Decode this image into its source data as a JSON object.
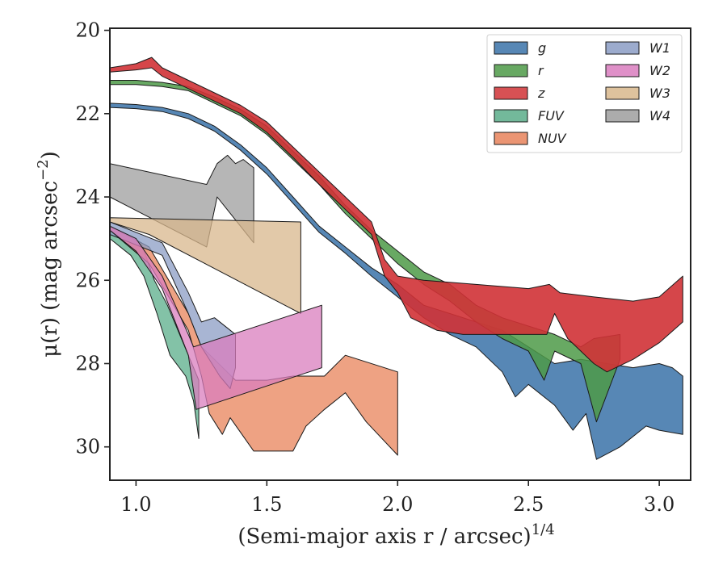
{
  "chart_data": {
    "type": "area",
    "title": "",
    "xlabel": "(Semi-major axis r / arcsec)",
    "xlabel_exponent": "1/4",
    "ylabel_prefix": "μ(r) (mag arcsec",
    "ylabel_exponent": "−2",
    "ylabel_suffix": ")",
    "xlim": [
      0.9,
      3.12
    ],
    "ylim": [
      30.8,
      19.95
    ],
    "y_inverted": true,
    "grid": false,
    "legend_position": "top-right",
    "x_ticks": [
      1.0,
      1.5,
      2.0,
      2.5,
      3.0
    ],
    "x_tick_labels": [
      "1.0",
      "1.5",
      "2.0",
      "2.5",
      "3.0"
    ],
    "y_ticks": [
      20,
      22,
      24,
      26,
      28,
      30
    ],
    "y_tick_labels": [
      "20",
      "22",
      "24",
      "26",
      "28",
      "30"
    ],
    "series": [
      {
        "name": "W4",
        "color": "#9e9e9e",
        "opacity": 0.75,
        "upper": [
          [
            0.9,
            23.2
          ],
          [
            1.27,
            23.7
          ],
          [
            1.31,
            23.2
          ],
          [
            1.35,
            23.0
          ],
          [
            1.38,
            23.2
          ],
          [
            1.41,
            23.1
          ],
          [
            1.45,
            23.3
          ]
        ],
        "lower": [
          [
            0.9,
            24.0
          ],
          [
            1.27,
            25.2
          ],
          [
            1.31,
            24.0
          ],
          [
            1.45,
            25.1
          ]
        ]
      },
      {
        "name": "W3",
        "color": "#d8b78c",
        "opacity": 0.75,
        "upper": [
          [
            0.9,
            24.5
          ],
          [
            1.63,
            24.6
          ]
        ],
        "lower": [
          [
            0.9,
            24.6
          ],
          [
            1.05,
            24.9
          ],
          [
            1.63,
            26.8
          ]
        ]
      },
      {
        "name": "FUV",
        "color": "#5aad8a",
        "opacity": 0.75,
        "upper": [
          [
            0.9,
            24.7
          ],
          [
            1.02,
            25.1
          ],
          [
            1.07,
            26.0
          ],
          [
            1.12,
            26.6
          ],
          [
            1.18,
            27.5
          ],
          [
            1.24,
            28.4
          ]
        ],
        "lower": [
          [
            0.9,
            25.0
          ],
          [
            0.98,
            25.4
          ],
          [
            1.03,
            25.9
          ],
          [
            1.08,
            26.8
          ],
          [
            1.13,
            27.8
          ],
          [
            1.19,
            28.3
          ],
          [
            1.22,
            28.9
          ],
          [
            1.24,
            29.8
          ]
        ]
      },
      {
        "name": "NUV",
        "color": "#e8835a",
        "opacity": 0.75,
        "upper": [
          [
            0.9,
            24.7
          ],
          [
            1.05,
            25.2
          ],
          [
            1.2,
            26.8
          ],
          [
            1.25,
            27.6
          ],
          [
            1.3,
            27.9
          ],
          [
            1.38,
            28.4
          ],
          [
            1.5,
            28.4
          ],
          [
            1.6,
            28.3
          ],
          [
            1.72,
            28.3
          ],
          [
            1.8,
            27.8
          ],
          [
            2.0,
            28.2
          ]
        ],
        "lower": [
          [
            0.9,
            24.8
          ],
          [
            1.05,
            25.6
          ],
          [
            1.2,
            27.2
          ],
          [
            1.25,
            28.3
          ],
          [
            1.28,
            29.2
          ],
          [
            1.33,
            29.7
          ],
          [
            1.36,
            29.3
          ],
          [
            1.45,
            30.1
          ],
          [
            1.6,
            30.1
          ],
          [
            1.65,
            29.5
          ],
          [
            1.72,
            29.1
          ],
          [
            1.8,
            28.7
          ],
          [
            1.88,
            29.4
          ],
          [
            2.0,
            30.2
          ]
        ]
      },
      {
        "name": "W1",
        "color": "#8b9cc4",
        "opacity": 0.75,
        "upper": [
          [
            0.9,
            24.6
          ],
          [
            1.1,
            25.1
          ],
          [
            1.2,
            26.3
          ],
          [
            1.25,
            27.0
          ],
          [
            1.3,
            26.9
          ],
          [
            1.36,
            27.2
          ],
          [
            1.38,
            27.3
          ]
        ],
        "lower": [
          [
            0.9,
            24.9
          ],
          [
            1.1,
            25.4
          ],
          [
            1.2,
            26.8
          ],
          [
            1.25,
            27.6
          ],
          [
            1.32,
            28.3
          ],
          [
            1.36,
            28.6
          ],
          [
            1.38,
            28.1
          ]
        ]
      },
      {
        "name": "W2",
        "color": "#d97dbe",
        "opacity": 0.75,
        "upper": [
          [
            0.9,
            24.7
          ],
          [
            1.0,
            25.0
          ],
          [
            1.1,
            25.9
          ],
          [
            1.2,
            27.3
          ],
          [
            1.22,
            27.6
          ],
          [
            1.71,
            26.6
          ]
        ],
        "lower": [
          [
            0.9,
            24.8
          ],
          [
            1.0,
            25.3
          ],
          [
            1.1,
            26.2
          ],
          [
            1.2,
            27.8
          ],
          [
            1.23,
            29.1
          ],
          [
            1.71,
            28.1
          ]
        ]
      },
      {
        "name": "g",
        "color": "#3a72a8",
        "opacity": 0.85,
        "upper": [
          [
            0.9,
            21.75
          ],
          [
            1.0,
            21.78
          ],
          [
            1.1,
            21.85
          ],
          [
            1.2,
            22.0
          ],
          [
            1.3,
            22.3
          ],
          [
            1.4,
            22.75
          ],
          [
            1.5,
            23.3
          ],
          [
            1.6,
            24.0
          ],
          [
            1.7,
            24.7
          ],
          [
            1.8,
            25.2
          ],
          [
            1.9,
            25.7
          ],
          [
            2.0,
            26.1
          ],
          [
            2.1,
            26.6
          ],
          [
            2.2,
            26.8
          ],
          [
            2.3,
            27.0
          ],
          [
            2.4,
            27.2
          ],
          [
            2.5,
            27.6
          ],
          [
            2.6,
            28.0
          ],
          [
            2.7,
            27.9
          ],
          [
            2.8,
            28.0
          ],
          [
            2.9,
            28.1
          ],
          [
            3.0,
            28.0
          ],
          [
            3.05,
            28.1
          ],
          [
            3.09,
            28.3
          ]
        ],
        "lower": [
          [
            0.9,
            21.85
          ],
          [
            1.0,
            21.88
          ],
          [
            1.1,
            21.95
          ],
          [
            1.2,
            22.12
          ],
          [
            1.3,
            22.42
          ],
          [
            1.4,
            22.88
          ],
          [
            1.5,
            23.45
          ],
          [
            1.6,
            24.15
          ],
          [
            1.7,
            24.85
          ],
          [
            1.8,
            25.35
          ],
          [
            1.9,
            25.9
          ],
          [
            2.0,
            26.4
          ],
          [
            2.1,
            26.9
          ],
          [
            2.2,
            27.3
          ],
          [
            2.3,
            27.6
          ],
          [
            2.4,
            28.2
          ],
          [
            2.45,
            28.8
          ],
          [
            2.5,
            28.5
          ],
          [
            2.6,
            29.0
          ],
          [
            2.67,
            29.6
          ],
          [
            2.72,
            29.2
          ],
          [
            2.76,
            30.3
          ],
          [
            2.85,
            30.0
          ],
          [
            2.95,
            29.5
          ],
          [
            3.0,
            29.6
          ],
          [
            3.09,
            29.7
          ]
        ]
      },
      {
        "name": "r",
        "color": "#4e9a48",
        "opacity": 0.85,
        "upper": [
          [
            0.9,
            21.2
          ],
          [
            1.0,
            21.2
          ],
          [
            1.1,
            21.25
          ],
          [
            1.2,
            21.35
          ],
          [
            1.3,
            21.6
          ],
          [
            1.4,
            21.9
          ],
          [
            1.5,
            22.3
          ],
          [
            1.6,
            22.9
          ],
          [
            1.7,
            23.5
          ],
          [
            1.8,
            24.2
          ],
          [
            1.9,
            24.8
          ],
          [
            2.0,
            25.3
          ],
          [
            2.1,
            25.8
          ],
          [
            2.2,
            26.1
          ],
          [
            2.3,
            26.6
          ],
          [
            2.4,
            26.9
          ],
          [
            2.5,
            27.1
          ],
          [
            2.6,
            27.3
          ],
          [
            2.7,
            27.6
          ],
          [
            2.75,
            27.4
          ],
          [
            2.85,
            27.3
          ]
        ],
        "lower": [
          [
            0.9,
            21.3
          ],
          [
            1.0,
            21.3
          ],
          [
            1.1,
            21.35
          ],
          [
            1.2,
            21.45
          ],
          [
            1.3,
            21.75
          ],
          [
            1.4,
            22.05
          ],
          [
            1.5,
            22.5
          ],
          [
            1.6,
            23.1
          ],
          [
            1.7,
            23.7
          ],
          [
            1.8,
            24.4
          ],
          [
            1.9,
            25.0
          ],
          [
            2.0,
            25.6
          ],
          [
            2.1,
            26.1
          ],
          [
            2.2,
            26.5
          ],
          [
            2.3,
            27.0
          ],
          [
            2.4,
            27.4
          ],
          [
            2.5,
            27.7
          ],
          [
            2.56,
            28.4
          ],
          [
            2.6,
            27.7
          ],
          [
            2.7,
            28.0
          ],
          [
            2.76,
            29.4
          ],
          [
            2.85,
            27.9
          ]
        ]
      },
      {
        "name": "z",
        "color": "#d03236",
        "opacity": 0.9,
        "upper": [
          [
            0.9,
            20.9
          ],
          [
            0.95,
            20.85
          ],
          [
            1.0,
            20.8
          ],
          [
            1.06,
            20.65
          ],
          [
            1.1,
            20.9
          ],
          [
            1.2,
            21.2
          ],
          [
            1.3,
            21.5
          ],
          [
            1.4,
            21.8
          ],
          [
            1.5,
            22.2
          ],
          [
            1.6,
            22.8
          ],
          [
            1.7,
            23.4
          ],
          [
            1.8,
            24.0
          ],
          [
            1.9,
            24.6
          ],
          [
            1.95,
            25.5
          ],
          [
            2.0,
            25.9
          ],
          [
            2.1,
            26.0
          ],
          [
            2.3,
            26.1
          ],
          [
            2.5,
            26.2
          ],
          [
            2.58,
            26.1
          ],
          [
            2.62,
            26.3
          ],
          [
            2.75,
            26.4
          ],
          [
            2.9,
            26.5
          ],
          [
            3.0,
            26.4
          ],
          [
            3.09,
            25.9
          ]
        ],
        "lower": [
          [
            0.9,
            21.0
          ],
          [
            1.0,
            20.95
          ],
          [
            1.06,
            20.9
          ],
          [
            1.1,
            21.1
          ],
          [
            1.2,
            21.4
          ],
          [
            1.3,
            21.7
          ],
          [
            1.4,
            22.0
          ],
          [
            1.5,
            22.45
          ],
          [
            1.6,
            23.05
          ],
          [
            1.7,
            23.7
          ],
          [
            1.8,
            24.3
          ],
          [
            1.9,
            24.9
          ],
          [
            1.95,
            25.9
          ],
          [
            2.0,
            26.3
          ],
          [
            2.05,
            26.9
          ],
          [
            2.15,
            27.2
          ],
          [
            2.25,
            27.3
          ],
          [
            2.4,
            27.3
          ],
          [
            2.57,
            27.3
          ],
          [
            2.6,
            26.8
          ],
          [
            2.65,
            27.4
          ],
          [
            2.7,
            27.7
          ],
          [
            2.75,
            28.0
          ],
          [
            2.8,
            28.2
          ],
          [
            2.9,
            27.9
          ],
          [
            3.0,
            27.5
          ],
          [
            3.09,
            27.0
          ]
        ]
      }
    ],
    "legend": [
      {
        "name": "g",
        "color": "#3a72a8"
      },
      {
        "name": "r",
        "color": "#4e9a48"
      },
      {
        "name": "z",
        "color": "#d03236"
      },
      {
        "name": "FUV",
        "color": "#5aad8a"
      },
      {
        "name": "NUV",
        "color": "#e8835a"
      },
      {
        "name": "W1",
        "color": "#8b9cc4"
      },
      {
        "name": "W2",
        "color": "#d97dbe"
      },
      {
        "name": "W3",
        "color": "#d8b78c"
      },
      {
        "name": "W4",
        "color": "#9e9e9e"
      }
    ]
  }
}
